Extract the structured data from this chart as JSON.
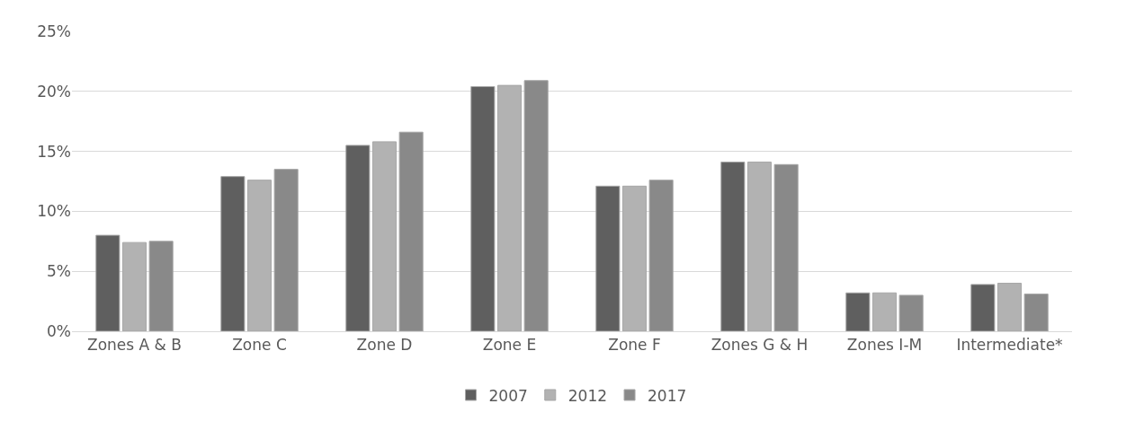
{
  "chart_data": {
    "type": "bar",
    "categories": [
      "Zones A & B",
      "Zone C",
      "Zone D",
      "Zone E",
      "Zone F",
      "Zones G & H",
      "Zones I-M",
      "Intermediate*"
    ],
    "series": [
      {
        "name": "2007",
        "color": "#5f5f5f",
        "values": [
          8.0,
          12.9,
          15.5,
          20.4,
          12.1,
          14.1,
          3.2,
          3.9
        ]
      },
      {
        "name": "2012",
        "color": "#b2b2b2",
        "values": [
          7.4,
          12.6,
          15.8,
          20.5,
          12.1,
          14.1,
          3.2,
          4.0
        ]
      },
      {
        "name": "2017",
        "color": "#898989",
        "values": [
          7.5,
          13.5,
          16.6,
          20.9,
          12.6,
          13.9,
          3.0,
          3.1
        ]
      }
    ],
    "ylim": [
      0,
      25
    ],
    "yticks": [
      {
        "value": 0,
        "label": "0%"
      },
      {
        "value": 5,
        "label": "5%"
      },
      {
        "value": 10,
        "label": "10%"
      },
      {
        "value": 15,
        "label": "15%"
      },
      {
        "value": 20,
        "label": "20%"
      },
      {
        "value": 25,
        "label": "25%"
      }
    ],
    "grid": "y",
    "legend": "bottom"
  }
}
